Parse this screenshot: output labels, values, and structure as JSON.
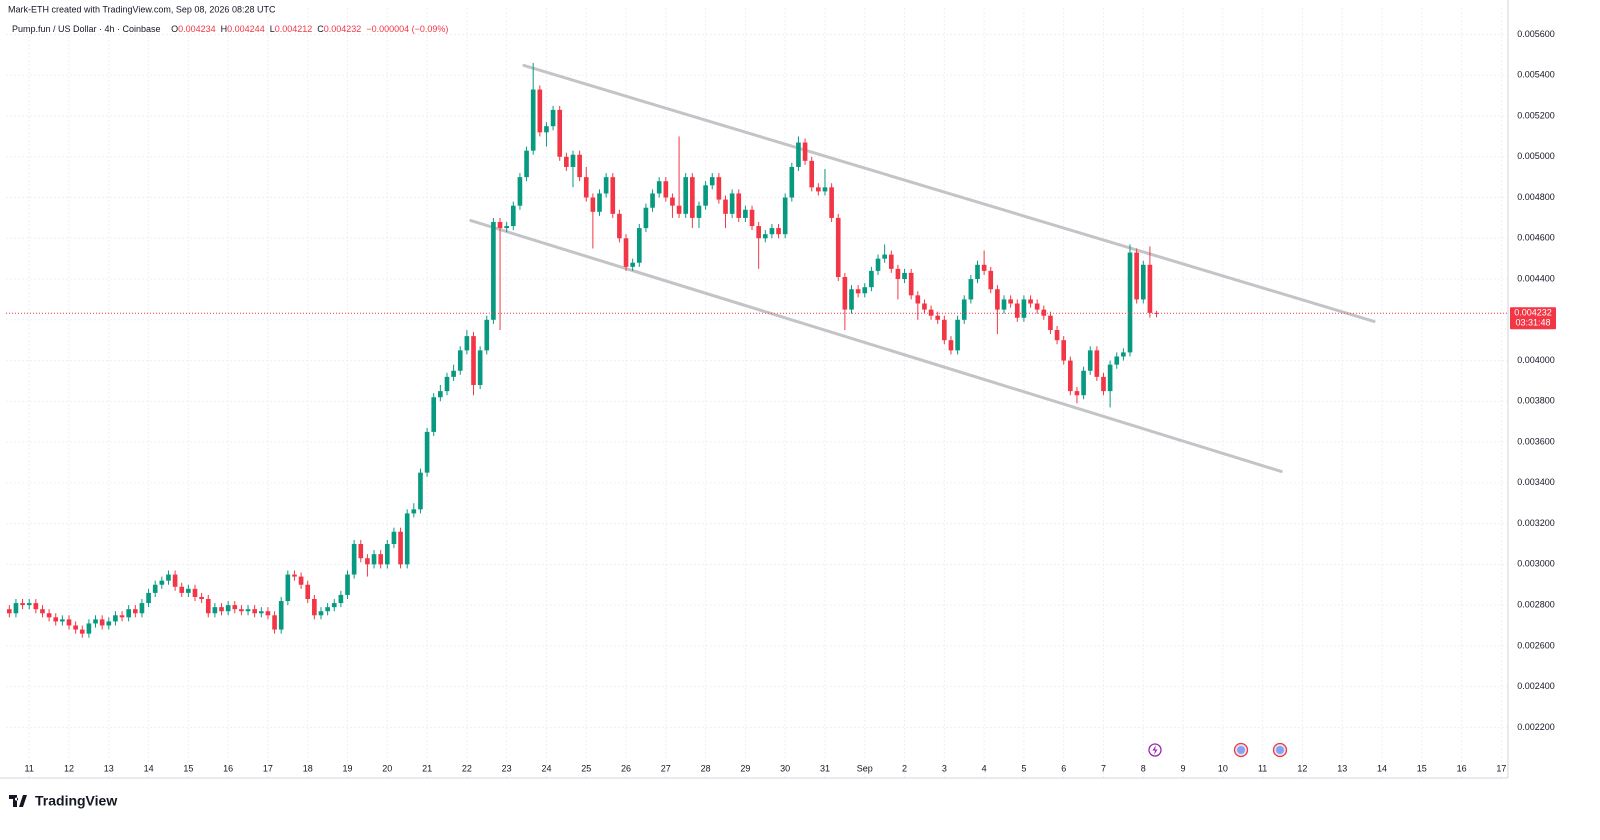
{
  "credit": "Mark-ETH created with TradingView.com, Sep 08, 2026 08:28 UTC",
  "brand": "TradingView",
  "chart_data": {
    "type": "candlestick",
    "symbol": "Pump.fun / US Dollar · 4h · Coinbase",
    "ohlc_labels": [
      "O",
      "H",
      "L",
      "C"
    ],
    "change": "−0.000004 (−0.09%)",
    "countdown": "03:31:48",
    "up_color": "#089981",
    "down_color": "#f23645",
    "grid": true,
    "xlim": [
      -0.5,
      226
    ],
    "ylim": [
      0.00204,
      0.00573
    ],
    "yticks": [
      {
        "value": 0.0022,
        "label": "0.002200"
      },
      {
        "value": 0.0024,
        "label": "0.002400"
      },
      {
        "value": 0.0026,
        "label": "0.002600"
      },
      {
        "value": 0.0028,
        "label": "0.002800"
      },
      {
        "value": 0.003,
        "label": "0.003000"
      },
      {
        "value": 0.0032,
        "label": "0.003200"
      },
      {
        "value": 0.0034,
        "label": "0.003400"
      },
      {
        "value": 0.0036,
        "label": "0.003600"
      },
      {
        "value": 0.0038,
        "label": "0.003800"
      },
      {
        "value": 0.004,
        "label": "0.004000"
      },
      {
        "value": 0.0042,
        "label": "0.004200"
      },
      {
        "value": 0.0044,
        "label": "0.004400"
      },
      {
        "value": 0.0046,
        "label": "0.004600"
      },
      {
        "value": 0.0048,
        "label": "0.004800"
      },
      {
        "value": 0.005,
        "label": "0.005000"
      },
      {
        "value": 0.0052,
        "label": "0.005200"
      },
      {
        "value": 0.0054,
        "label": "0.005400"
      },
      {
        "value": 0.0056,
        "label": "0.005600"
      }
    ],
    "xticks": [
      {
        "value": 3,
        "label": "11"
      },
      {
        "value": 9,
        "label": "12"
      },
      {
        "value": 15,
        "label": "13"
      },
      {
        "value": 21,
        "label": "14"
      },
      {
        "value": 27,
        "label": "15"
      },
      {
        "value": 33,
        "label": "16"
      },
      {
        "value": 39,
        "label": "17"
      },
      {
        "value": 45,
        "label": "18"
      },
      {
        "value": 51,
        "label": "19"
      },
      {
        "value": 57,
        "label": "20"
      },
      {
        "value": 63,
        "label": "21"
      },
      {
        "value": 69,
        "label": "22"
      },
      {
        "value": 75,
        "label": "23"
      },
      {
        "value": 81,
        "label": "24"
      },
      {
        "value": 87,
        "label": "25"
      },
      {
        "value": 93,
        "label": "26"
      },
      {
        "value": 99,
        "label": "27"
      },
      {
        "value": 105,
        "label": "28"
      },
      {
        "value": 111,
        "label": "29"
      },
      {
        "value": 117,
        "label": "30"
      },
      {
        "value": 123,
        "label": "31"
      },
      {
        "value": 129,
        "label": "Sep"
      },
      {
        "value": 135,
        "label": "2"
      },
      {
        "value": 141,
        "label": "3"
      },
      {
        "value": 147,
        "label": "4"
      },
      {
        "value": 153,
        "label": "5"
      },
      {
        "value": 159,
        "label": "6"
      },
      {
        "value": 165,
        "label": "7"
      },
      {
        "value": 171,
        "label": "8"
      },
      {
        "value": 177,
        "label": "9"
      },
      {
        "value": 183,
        "label": "10"
      },
      {
        "value": 189,
        "label": "11"
      },
      {
        "value": 195,
        "label": "12"
      },
      {
        "value": 201,
        "label": "13"
      },
      {
        "value": 207,
        "label": "14"
      },
      {
        "value": 213,
        "label": "15"
      },
      {
        "value": 219,
        "label": "16"
      },
      {
        "value": 225,
        "label": "17"
      }
    ],
    "trendlines": [
      {
        "x": [
          77.6,
          205.8
        ],
        "y": [
          0.005448,
          0.004192
        ]
      },
      {
        "x": [
          69.6,
          191.8
        ],
        "y": [
          0.004687,
          0.003456
        ]
      }
    ],
    "ohlc": [
      [
        0.00278,
        0.0028,
        0.00274,
        0.00276
      ],
      [
        0.00276,
        0.00283,
        0.00274,
        0.00281
      ],
      [
        0.00281,
        0.00283,
        0.00278,
        0.0028
      ],
      [
        0.0028,
        0.00283,
        0.00278,
        0.00281
      ],
      [
        0.00281,
        0.00283,
        0.00276,
        0.00278
      ],
      [
        0.00278,
        0.0028,
        0.00274,
        0.00276
      ],
      [
        0.00276,
        0.00278,
        0.00272,
        0.00274
      ],
      [
        0.00274,
        0.00276,
        0.0027,
        0.00272
      ],
      [
        0.00272,
        0.00275,
        0.0027,
        0.00273
      ],
      [
        0.00273,
        0.00275,
        0.00268,
        0.0027
      ],
      [
        0.0027,
        0.00272,
        0.00266,
        0.00268
      ],
      [
        0.00268,
        0.0027,
        0.00264,
        0.00266
      ],
      [
        0.00266,
        0.00273,
        0.00264,
        0.00271
      ],
      [
        0.00271,
        0.00275,
        0.00269,
        0.00273
      ],
      [
        0.00273,
        0.00275,
        0.00268,
        0.0027
      ],
      [
        0.0027,
        0.00274,
        0.00268,
        0.00272
      ],
      [
        0.00272,
        0.00277,
        0.0027,
        0.00275
      ],
      [
        0.00275,
        0.00277,
        0.00272,
        0.00274
      ],
      [
        0.00274,
        0.0028,
        0.00272,
        0.00278
      ],
      [
        0.00278,
        0.0028,
        0.00274,
        0.00276
      ],
      [
        0.00276,
        0.00283,
        0.00274,
        0.00281
      ],
      [
        0.00281,
        0.00288,
        0.00279,
        0.00286
      ],
      [
        0.00286,
        0.00292,
        0.00284,
        0.0029
      ],
      [
        0.0029,
        0.00294,
        0.00288,
        0.00292
      ],
      [
        0.00292,
        0.00297,
        0.0029,
        0.00295
      ],
      [
        0.00295,
        0.00297,
        0.00287,
        0.00289
      ],
      [
        0.00289,
        0.00291,
        0.00284,
        0.00286
      ],
      [
        0.00286,
        0.0029,
        0.00284,
        0.00288
      ],
      [
        0.00288,
        0.0029,
        0.00282,
        0.00284
      ],
      [
        0.00284,
        0.00286,
        0.00281,
        0.00283
      ],
      [
        0.00283,
        0.00285,
        0.00274,
        0.00276
      ],
      [
        0.00276,
        0.00281,
        0.00274,
        0.00279
      ],
      [
        0.00279,
        0.00281,
        0.00275,
        0.00277
      ],
      [
        0.00277,
        0.00282,
        0.00275,
        0.0028
      ],
      [
        0.0028,
        0.00282,
        0.00276,
        0.00278
      ],
      [
        0.00278,
        0.0028,
        0.00275,
        0.00277
      ],
      [
        0.00277,
        0.0028,
        0.00275,
        0.00278
      ],
      [
        0.00278,
        0.0028,
        0.00274,
        0.00276
      ],
      [
        0.00276,
        0.00279,
        0.00274,
        0.00277
      ],
      [
        0.00277,
        0.00279,
        0.00273,
        0.00275
      ],
      [
        0.00275,
        0.00277,
        0.00266,
        0.00268
      ],
      [
        0.00268,
        0.00284,
        0.00266,
        0.00282
      ],
      [
        0.00282,
        0.00297,
        0.0028,
        0.00295
      ],
      [
        0.00295,
        0.00297,
        0.00292,
        0.00294
      ],
      [
        0.00294,
        0.00296,
        0.00288,
        0.0029
      ],
      [
        0.0029,
        0.00292,
        0.00281,
        0.00283
      ],
      [
        0.00283,
        0.00285,
        0.00273,
        0.00275
      ],
      [
        0.00275,
        0.00279,
        0.00273,
        0.00277
      ],
      [
        0.00277,
        0.00281,
        0.00275,
        0.00279
      ],
      [
        0.00279,
        0.00283,
        0.00277,
        0.00281
      ],
      [
        0.00281,
        0.00287,
        0.00279,
        0.00285
      ],
      [
        0.00285,
        0.00297,
        0.00283,
        0.00295
      ],
      [
        0.00295,
        0.00312,
        0.00293,
        0.0031
      ],
      [
        0.0031,
        0.00312,
        0.00301,
        0.00303
      ],
      [
        0.00303,
        0.00305,
        0.00294,
        0.003
      ],
      [
        0.003,
        0.00307,
        0.00298,
        0.00305
      ],
      [
        0.00305,
        0.00307,
        0.00298,
        0.003
      ],
      [
        0.003,
        0.00312,
        0.00298,
        0.0031
      ],
      [
        0.0031,
        0.00318,
        0.00308,
        0.00316
      ],
      [
        0.00316,
        0.00318,
        0.00298,
        0.003
      ],
      [
        0.003,
        0.00327,
        0.00298,
        0.00325
      ],
      [
        0.00325,
        0.0033,
        0.00323,
        0.00327
      ],
      [
        0.00327,
        0.00347,
        0.00325,
        0.00345
      ],
      [
        0.00345,
        0.00367,
        0.00343,
        0.00365
      ],
      [
        0.00365,
        0.00384,
        0.00363,
        0.00382
      ],
      [
        0.00382,
        0.00388,
        0.0038,
        0.00385
      ],
      [
        0.00385,
        0.00394,
        0.00383,
        0.00392
      ],
      [
        0.00392,
        0.00398,
        0.0039,
        0.00395
      ],
      [
        0.00395,
        0.00407,
        0.00393,
        0.00405
      ],
      [
        0.00405,
        0.00415,
        0.00403,
        0.00412
      ],
      [
        0.00412,
        0.00414,
        0.00383,
        0.00388
      ],
      [
        0.00388,
        0.00407,
        0.00386,
        0.00405
      ],
      [
        0.00405,
        0.00422,
        0.00403,
        0.0042
      ],
      [
        0.0042,
        0.0047,
        0.00418,
        0.00468
      ],
      [
        0.00468,
        0.0047,
        0.00415,
        0.00465
      ],
      [
        0.00465,
        0.00468,
        0.00463,
        0.00466
      ],
      [
        0.00466,
        0.00478,
        0.00464,
        0.00476
      ],
      [
        0.00476,
        0.00492,
        0.00474,
        0.0049
      ],
      [
        0.0049,
        0.00505,
        0.00488,
        0.00503
      ],
      [
        0.00503,
        0.00546,
        0.00501,
        0.00533
      ],
      [
        0.00533,
        0.00535,
        0.0051,
        0.00512
      ],
      [
        0.00512,
        0.00517,
        0.00505,
        0.00515
      ],
      [
        0.00515,
        0.00525,
        0.00513,
        0.00523
      ],
      [
        0.00523,
        0.00525,
        0.00498,
        0.005
      ],
      [
        0.005,
        0.00502,
        0.00493,
        0.00495
      ],
      [
        0.00495,
        0.00503,
        0.00485,
        0.00501
      ],
      [
        0.00501,
        0.00503,
        0.00488,
        0.0049
      ],
      [
        0.0049,
        0.00495,
        0.00478,
        0.0048
      ],
      [
        0.0048,
        0.00482,
        0.00455,
        0.00473
      ],
      [
        0.00473,
        0.00484,
        0.00471,
        0.00482
      ],
      [
        0.00482,
        0.00492,
        0.0048,
        0.0049
      ],
      [
        0.0049,
        0.00492,
        0.0047,
        0.00472
      ],
      [
        0.00472,
        0.00474,
        0.00458,
        0.0046
      ],
      [
        0.0046,
        0.00462,
        0.00444,
        0.00446
      ],
      [
        0.00446,
        0.0045,
        0.00444,
        0.00448
      ],
      [
        0.00448,
        0.00467,
        0.00446,
        0.00465
      ],
      [
        0.00465,
        0.00477,
        0.00463,
        0.00475
      ],
      [
        0.00475,
        0.00484,
        0.00473,
        0.00482
      ],
      [
        0.00482,
        0.0049,
        0.0048,
        0.00488
      ],
      [
        0.00488,
        0.0049,
        0.00478,
        0.0048
      ],
      [
        0.0048,
        0.00482,
        0.0047,
        0.00476
      ],
      [
        0.00476,
        0.0051,
        0.0047,
        0.00472
      ],
      [
        0.00472,
        0.00492,
        0.0047,
        0.0049
      ],
      [
        0.0049,
        0.00492,
        0.00465,
        0.0047
      ],
      [
        0.0047,
        0.00478,
        0.00465,
        0.00476
      ],
      [
        0.00476,
        0.00488,
        0.00474,
        0.00486
      ],
      [
        0.00486,
        0.00492,
        0.00484,
        0.0049
      ],
      [
        0.0049,
        0.00492,
        0.00477,
        0.00479
      ],
      [
        0.00479,
        0.00481,
        0.00465,
        0.00472
      ],
      [
        0.00472,
        0.00484,
        0.0047,
        0.00482
      ],
      [
        0.00482,
        0.00484,
        0.00468,
        0.0047
      ],
      [
        0.0047,
        0.00476,
        0.00468,
        0.00474
      ],
      [
        0.00474,
        0.00476,
        0.00464,
        0.00466
      ],
      [
        0.00466,
        0.00468,
        0.00445,
        0.0046
      ],
      [
        0.0046,
        0.00464,
        0.00458,
        0.00462
      ],
      [
        0.00462,
        0.00467,
        0.0046,
        0.00465
      ],
      [
        0.00465,
        0.00467,
        0.0046,
        0.00462
      ],
      [
        0.00462,
        0.00482,
        0.0046,
        0.0048
      ],
      [
        0.0048,
        0.00497,
        0.00478,
        0.00495
      ],
      [
        0.00495,
        0.0051,
        0.00493,
        0.00507
      ],
      [
        0.00507,
        0.00509,
        0.00496,
        0.00498
      ],
      [
        0.00498,
        0.005,
        0.00483,
        0.00485
      ],
      [
        0.00485,
        0.00487,
        0.00481,
        0.00483
      ],
      [
        0.00483,
        0.00494,
        0.00481,
        0.00485
      ],
      [
        0.00485,
        0.00487,
        0.00468,
        0.0047
      ],
      [
        0.0047,
        0.00472,
        0.00439,
        0.00441
      ],
      [
        0.00441,
        0.00443,
        0.00415,
        0.00425
      ],
      [
        0.00425,
        0.00437,
        0.00423,
        0.00435
      ],
      [
        0.00435,
        0.00437,
        0.00431,
        0.00433
      ],
      [
        0.00433,
        0.00438,
        0.00431,
        0.00436
      ],
      [
        0.00436,
        0.00446,
        0.00434,
        0.00444
      ],
      [
        0.00444,
        0.00452,
        0.00442,
        0.0045
      ],
      [
        0.0045,
        0.00457,
        0.00448,
        0.00452
      ],
      [
        0.00452,
        0.00454,
        0.00443,
        0.00445
      ],
      [
        0.00445,
        0.00447,
        0.0043,
        0.0044
      ],
      [
        0.0044,
        0.00445,
        0.00438,
        0.00443
      ],
      [
        0.00443,
        0.00445,
        0.0043,
        0.00432
      ],
      [
        0.00432,
        0.00434,
        0.0042,
        0.00428
      ],
      [
        0.00428,
        0.0043,
        0.00423,
        0.00425
      ],
      [
        0.00425,
        0.00427,
        0.0042,
        0.00422
      ],
      [
        0.00422,
        0.00424,
        0.00418,
        0.0042
      ],
      [
        0.0042,
        0.00422,
        0.00408,
        0.0041
      ],
      [
        0.0041,
        0.00412,
        0.00403,
        0.00405
      ],
      [
        0.00405,
        0.00422,
        0.00403,
        0.0042
      ],
      [
        0.0042,
        0.00432,
        0.00418,
        0.0043
      ],
      [
        0.0043,
        0.00442,
        0.00428,
        0.0044
      ],
      [
        0.0044,
        0.00449,
        0.00438,
        0.00447
      ],
      [
        0.00447,
        0.00454,
        0.00442,
        0.00444
      ],
      [
        0.00444,
        0.00446,
        0.00433,
        0.00435
      ],
      [
        0.00435,
        0.00437,
        0.00413,
        0.00425
      ],
      [
        0.00425,
        0.00432,
        0.00423,
        0.0043
      ],
      [
        0.0043,
        0.00432,
        0.00426,
        0.00428
      ],
      [
        0.00428,
        0.0043,
        0.00419,
        0.00421
      ],
      [
        0.00421,
        0.00432,
        0.00419,
        0.0043
      ],
      [
        0.0043,
        0.00432,
        0.00426,
        0.00428
      ],
      [
        0.00428,
        0.0043,
        0.00423,
        0.00425
      ],
      [
        0.00425,
        0.00427,
        0.0042,
        0.00422
      ],
      [
        0.00422,
        0.00424,
        0.00413,
        0.00415
      ],
      [
        0.00415,
        0.00417,
        0.00408,
        0.0041
      ],
      [
        0.0041,
        0.00412,
        0.00398,
        0.004
      ],
      [
        0.004,
        0.00402,
        0.00383,
        0.00385
      ],
      [
        0.00385,
        0.00387,
        0.00379,
        0.00383
      ],
      [
        0.00383,
        0.00397,
        0.00381,
        0.00395
      ],
      [
        0.00395,
        0.00407,
        0.00393,
        0.00405
      ],
      [
        0.00405,
        0.00407,
        0.0039,
        0.00392
      ],
      [
        0.00392,
        0.00394,
        0.00383,
        0.00385
      ],
      [
        0.00385,
        0.004,
        0.00377,
        0.00398
      ],
      [
        0.00398,
        0.00404,
        0.00396,
        0.00402
      ],
      [
        0.00402,
        0.00406,
        0.004,
        0.00404
      ],
      [
        0.00404,
        0.00457,
        0.00402,
        0.00453
      ],
      [
        0.00453,
        0.00455,
        0.00428,
        0.0043
      ],
      [
        0.0043,
        0.00449,
        0.00428,
        0.00447
      ],
      [
        0.00447,
        0.00456,
        0.00421,
        0.004234
      ],
      [
        0.004234,
        0.004244,
        0.004212,
        0.004232
      ]
    ]
  }
}
